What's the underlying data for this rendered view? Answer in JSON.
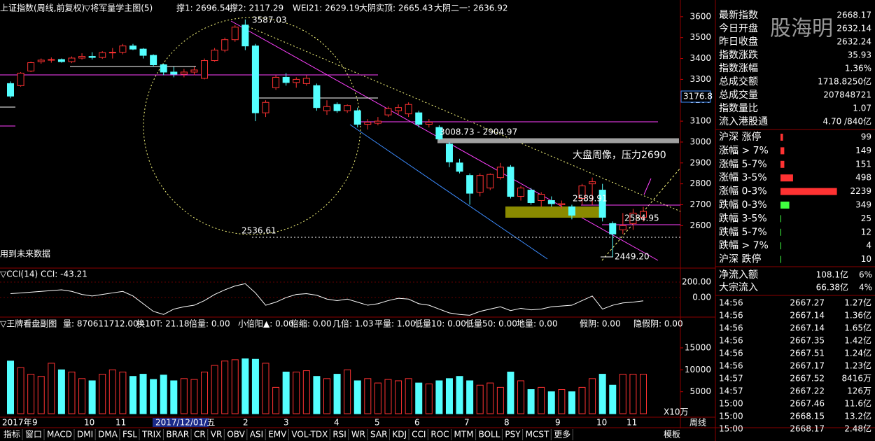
{
  "header": {
    "title": "上证指数(周线,前复权)",
    "indicator": "▽将军量学主图(5)",
    "support1": "撑1: 2696.54",
    "support2": "撑2: 2117.29",
    "wei21": "WEI21: 2629.19",
    "top": "大阴实顶: 2665.43",
    "half": "大阴二一: 2636.92"
  },
  "price_axis": {
    "ylim": [
      2400,
      3680
    ],
    "yticks": [
      3600,
      3500,
      3400,
      3300,
      3200,
      3100,
      3000,
      2900,
      2800,
      2700,
      2600
    ],
    "marker": "3176.8"
  },
  "annotations": [
    "3587.03",
    "2536.61",
    "3008.73 - 2904.97",
    "大盘周像，压力2690",
    "2589.91",
    "2584.95",
    "2449.20",
    "用到未来数据"
  ],
  "candles": [
    [
      3280,
      3290,
      3210,
      3220
    ],
    [
      3270,
      3335,
      3265,
      3330
    ],
    [
      3340,
      3385,
      3335,
      3380
    ],
    [
      3385,
      3400,
      3375,
      3392
    ],
    [
      3392,
      3405,
      3380,
      3395
    ],
    [
      3395,
      3400,
      3380,
      3385
    ],
    [
      3385,
      3410,
      3378,
      3402
    ],
    [
      3402,
      3425,
      3395,
      3410
    ],
    [
      3410,
      3430,
      3395,
      3405
    ],
    [
      3405,
      3435,
      3398,
      3428
    ],
    [
      3428,
      3450,
      3400,
      3430
    ],
    [
      3430,
      3470,
      3420,
      3460
    ],
    [
      3460,
      3470,
      3440,
      3445
    ],
    [
      3445,
      3450,
      3400,
      3415
    ],
    [
      3415,
      3420,
      3360,
      3370
    ],
    [
      3370,
      3375,
      3320,
      3335
    ],
    [
      3335,
      3360,
      3310,
      3325
    ],
    [
      3325,
      3350,
      3310,
      3335
    ],
    [
      3335,
      3360,
      3320,
      3345
    ],
    [
      3305,
      3400,
      3300,
      3390
    ],
    [
      3390,
      3450,
      3385,
      3440
    ],
    [
      3440,
      3500,
      3430,
      3490
    ],
    [
      3490,
      3560,
      3480,
      3550
    ],
    [
      3560,
      3587.03,
      3440,
      3460
    ],
    [
      3460,
      3470,
      3100,
      3140
    ],
    [
      3140,
      3200,
      3120,
      3190
    ],
    [
      3260,
      3320,
      3250,
      3310
    ],
    [
      3310,
      3330,
      3270,
      3285
    ],
    [
      3285,
      3310,
      3260,
      3300
    ],
    [
      3280,
      3320,
      3270,
      3305
    ],
    [
      3270,
      3280,
      3150,
      3165
    ],
    [
      3150,
      3200,
      3130,
      3170
    ],
    [
      3180,
      3190,
      3140,
      3150
    ],
    [
      3150,
      3180,
      3140,
      3175
    ],
    [
      3150,
      3165,
      3070,
      3085
    ],
    [
      3085,
      3110,
      3060,
      3095
    ],
    [
      3090,
      3120,
      3080,
      3100
    ],
    [
      3130,
      3170,
      3120,
      3160
    ],
    [
      3150,
      3180,
      3130,
      3165
    ],
    [
      3135,
      3190,
      3120,
      3180
    ],
    [
      3140,
      3150,
      3070,
      3085
    ],
    [
      3085,
      3110,
      3070,
      3095
    ],
    [
      3070,
      3080,
      3008.73,
      3015
    ],
    [
      2990,
      3000,
      2880,
      2905
    ],
    [
      2900,
      2920,
      2850,
      2860
    ],
    [
      2840,
      2850,
      2700,
      2755
    ],
    [
      2760,
      2850,
      2740,
      2840
    ],
    [
      2780,
      2850,
      2770,
      2845
    ],
    [
      2830,
      2900,
      2820,
      2880
    ],
    [
      2880,
      2890,
      2730,
      2740
    ],
    [
      2740,
      2790,
      2720,
      2780
    ],
    [
      2770,
      2780,
      2700,
      2710
    ],
    [
      2720,
      2760,
      2690,
      2750
    ],
    [
      2720,
      2740,
      2690,
      2705
    ],
    [
      2700,
      2720,
      2680,
      2705
    ],
    [
      2690,
      2700,
      2630,
      2650
    ],
    [
      2730,
      2800,
      2700,
      2790
    ],
    [
      2800,
      2830,
      2700,
      2810
    ],
    [
      2770,
      2800,
      2620,
      2640
    ],
    [
      2610,
      2620,
      2449.2,
      2560
    ],
    [
      2580,
      2660,
      2560,
      2600
    ],
    [
      2610,
      2680,
      2580,
      2660
    ],
    [
      2640,
      2690,
      2620,
      2668.17
    ]
  ],
  "cci": {
    "title": "▽CCI(14)",
    "value_label": "CCI: -43.21",
    "ylim": [
      -245,
      373
    ],
    "yticks": [
      {
        "value": 200,
        "label": "200.00"
      },
      {
        "value": 0,
        "label": "0.00"
      }
    ],
    "values": [
      50,
      60,
      70,
      80,
      90,
      100,
      80,
      40,
      20,
      40,
      60,
      80,
      20,
      -80,
      -180,
      -220,
      -150,
      -120,
      -100,
      -40,
      40,
      100,
      150,
      180,
      60,
      -100,
      -60,
      0,
      40,
      50,
      30,
      -20,
      -40,
      -20,
      -60,
      -100,
      -80,
      -40,
      -10,
      -20,
      -80,
      -100,
      -150,
      -200,
      -220,
      -230,
      -180,
      -150,
      -120,
      -170,
      -140,
      -160,
      -150,
      -120,
      -110,
      -100,
      -40,
      20,
      -150,
      -100,
      -70,
      -60,
      -43.21
    ]
  },
  "volume": {
    "header": [
      "▽王牌看盘副图",
      "量: 870611712.00",
      "换10T: 21.18",
      "倍量: 0.00",
      "小倍阳▲: 0.00",
      "倍缩: 0.00",
      "几倍: 1.03",
      "平量: 1.00",
      "低量10: 0.00",
      "低量50: 0.00",
      "地量: 0.00",
      "假阴: 0.00",
      "隐假阴: 0.00"
    ],
    "ylim": [
      0,
      19300
    ],
    "yticks": [
      15000,
      10000,
      5000
    ],
    "unit": "X10万",
    "values": [
      12000,
      10500,
      9000,
      8500,
      11500,
      10000,
      9500,
      8000,
      7500,
      9000,
      10000,
      9500,
      8500,
      9000,
      7800,
      8800,
      7500,
      8000,
      7800,
      9500,
      11000,
      12000,
      12300,
      12500,
      12400,
      11500,
      6000,
      9500,
      9500,
      9800,
      8500,
      8000,
      9000,
      10000,
      7500,
      8000,
      7000,
      7800,
      7500,
      8000,
      7000,
      6800,
      7500,
      8000,
      8500,
      7500,
      6500,
      7000,
      6000,
      9500,
      7500,
      5500,
      6000,
      5000,
      5500,
      5000,
      6000,
      8000,
      9000,
      6500,
      9000,
      9000,
      9000
    ]
  },
  "time_axis": {
    "labels": [
      "2017年",
      "9",
      "10",
      "11",
      "2017/12/01/五",
      "2",
      "3",
      "4",
      "5",
      "6",
      "7",
      "8",
      "9",
      "10",
      "11"
    ],
    "period": "周线"
  },
  "tabs": [
    "指标",
    "窗口",
    "MACD",
    "DMI",
    "DMA",
    "FSL",
    "TRIX",
    "BRAR",
    "CR",
    "VR",
    "OBV",
    "ASI",
    "EMV",
    "VOL-TDX",
    "RSI",
    "WR",
    "SAR",
    "KDJ",
    "CCI",
    "ROC",
    "MTM",
    "BOLL",
    "PSY",
    "MCST",
    "更多"
  ],
  "template": "模板",
  "watermark": "股海明",
  "quote": [
    {
      "label": "最新指数",
      "value": 2668.17
    },
    {
      "label": "今日开盘",
      "value": 2632.14
    },
    {
      "label": "昨日收盘",
      "value": 2632.24
    },
    {
      "label": "指数涨跌",
      "value": 35.93
    },
    {
      "label": "指数涨幅",
      "value": "1.36%"
    },
    {
      "label": "总成交额",
      "value": "1718.8250亿"
    },
    {
      "label": "总成交量",
      "value": 207848721
    },
    {
      "label": "指数量比",
      "value": 1.07
    },
    {
      "label": "流入港股通",
      "value": "4.70 /840亿"
    }
  ],
  "breadth": [
    {
      "label": "沪深 涨停",
      "count": 99
    },
    {
      "label": "涨幅 > 7%",
      "count": 149
    },
    {
      "label": "涨幅 5-7%",
      "count": 151
    },
    {
      "label": "涨幅 3-5%",
      "count": 498
    },
    {
      "label": "涨幅 0-3%",
      "count": 2239
    },
    {
      "label": "跌幅 0-3%",
      "count": 349
    },
    {
      "label": "跌幅 3-5%",
      "count": 25
    },
    {
      "label": "跌幅 5-7%",
      "count": 12
    },
    {
      "label": "跌幅 > 7%",
      "count": 4
    },
    {
      "label": "沪深 跌停",
      "count": 10
    }
  ],
  "flow": [
    {
      "label": "净流入额",
      "amount": "108.1亿",
      "pct": "6%"
    },
    {
      "label": "大宗流入",
      "amount": "66.38亿",
      "pct": "4%"
    }
  ],
  "ticks": [
    {
      "time": "14:56",
      "price": 2667.27,
      "volume": "1.27亿"
    },
    {
      "time": "14:56",
      "price": 2667.14,
      "volume": "1.36亿"
    },
    {
      "time": "14:56",
      "price": 2667.14,
      "volume": "1.65亿"
    },
    {
      "time": "14:56",
      "price": 2667.35,
      "volume": "1.42亿"
    },
    {
      "time": "14:56",
      "price": 2667.51,
      "volume": "1.24亿"
    },
    {
      "time": "14:56",
      "price": 2667.17,
      "volume": "1.23亿"
    },
    {
      "time": "14:57",
      "price": 2667.52,
      "volume": "8416万"
    },
    {
      "time": "14:57",
      "price": 2667.22,
      "volume": "126万"
    },
    {
      "time": "15:00",
      "price": 2667.46,
      "volume": "11.6亿"
    },
    {
      "time": "15:00",
      "price": 2668.15,
      "volume": "13.2亿"
    },
    {
      "time": "15:00",
      "price": 2668.17,
      "volume": "2.48亿"
    }
  ]
}
